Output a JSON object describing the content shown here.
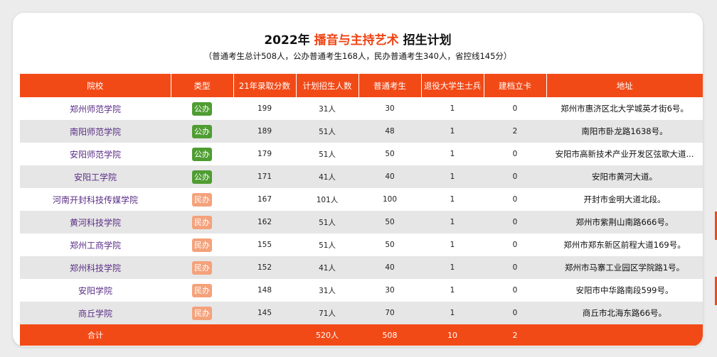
{
  "header": {
    "title_prefix": "2022年",
    "title_accent": "播音与主持艺术",
    "title_suffix": "招生计划",
    "subtitle": "（普通考生总计508人，公办普通考生168人，民办普通考生340人，省控线145分）"
  },
  "table": {
    "columns": [
      "院校",
      "类型",
      "21年录取分数",
      "计划招生人数",
      "普通考生",
      "退役大学生士兵",
      "建档立卡",
      "地址"
    ],
    "rows": [
      {
        "school": "郑州师范学院",
        "type": "公办",
        "kind": "pub",
        "score": "199",
        "plan": "31人",
        "regular": "30",
        "veteran": "1",
        "poverty": "0",
        "address": "郑州市惠济区北大学城英才街6号。"
      },
      {
        "school": "南阳师范学院",
        "type": "公办",
        "kind": "pub",
        "score": "189",
        "plan": "51人",
        "regular": "48",
        "veteran": "1",
        "poverty": "2",
        "address": "南阳市卧龙路1638号。"
      },
      {
        "school": "安阳师范学院",
        "type": "公办",
        "kind": "pub",
        "score": "179",
        "plan": "51人",
        "regular": "50",
        "veteran": "1",
        "poverty": "0",
        "address": "安阳市高新技术产业开发区弦歌大道..."
      },
      {
        "school": "安阳工学院",
        "type": "公办",
        "kind": "pub",
        "score": "171",
        "plan": "41人",
        "regular": "40",
        "veteran": "1",
        "poverty": "0",
        "address": "安阳市黄河大道。"
      },
      {
        "school": "河南开封科技传媒学院",
        "type": "民办",
        "kind": "priv",
        "score": "167",
        "plan": "101人",
        "regular": "100",
        "veteran": "1",
        "poverty": "0",
        "address": "开封市金明大道北段。"
      },
      {
        "school": "黄河科技学院",
        "type": "民办",
        "kind": "priv",
        "score": "162",
        "plan": "51人",
        "regular": "50",
        "veteran": "1",
        "poverty": "0",
        "address": "郑州市紫荆山南路666号。"
      },
      {
        "school": "郑州工商学院",
        "type": "民办",
        "kind": "priv",
        "score": "155",
        "plan": "51人",
        "regular": "50",
        "veteran": "1",
        "poverty": "0",
        "address": "郑州市郑东新区前程大道169号。"
      },
      {
        "school": "郑州科技学院",
        "type": "民办",
        "kind": "priv",
        "score": "152",
        "plan": "41人",
        "regular": "40",
        "veteran": "1",
        "poverty": "0",
        "address": "郑州市马寨工业园区学院路1号。"
      },
      {
        "school": "安阳学院",
        "type": "民办",
        "kind": "priv",
        "score": "148",
        "plan": "31人",
        "regular": "30",
        "veteran": "1",
        "poverty": "0",
        "address": "安阳市中华路南段599号。"
      },
      {
        "school": "商丘学院",
        "type": "民办",
        "kind": "priv",
        "score": "145",
        "plan": "71人",
        "regular": "70",
        "veteran": "1",
        "poverty": "0",
        "address": "商丘市北海东路66号。"
      }
    ],
    "total": {
      "label": "合计",
      "plan": "520人",
      "regular": "508",
      "veteran": "10",
      "poverty": "2"
    }
  },
  "colors": {
    "accent": "#f24a17",
    "public_badge": "#4f9d32",
    "private_badge": "#f4a27b",
    "school_text": "#5a2d86"
  }
}
